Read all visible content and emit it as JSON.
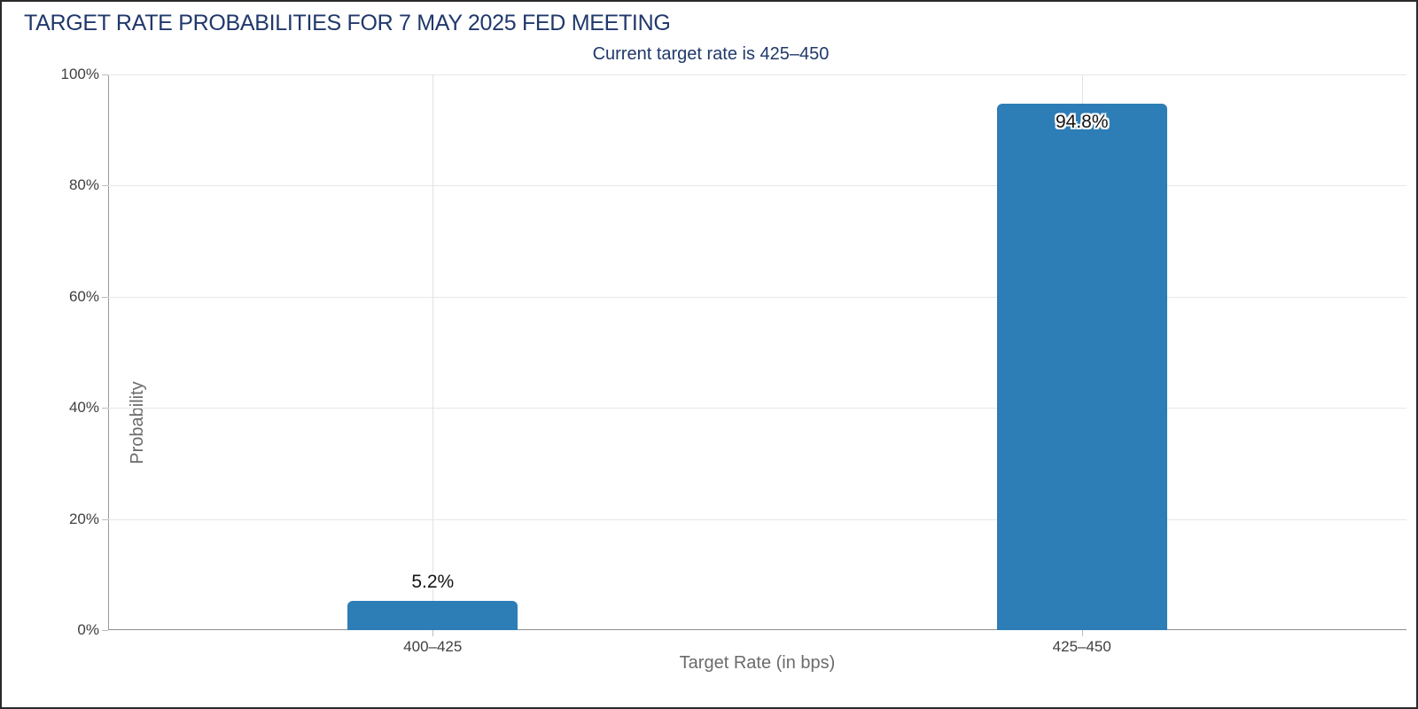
{
  "page": {
    "title": "TARGET RATE PROBABILITIES FOR 7 MAY 2025 FED MEETING",
    "subtitle": "Current target rate is 425–450"
  },
  "colors": {
    "title_text": "#20386b",
    "bar": "#2d7db7",
    "gridline": "#e7e7e7",
    "axis_line": "#9a9a9a",
    "tick_label": "#404040",
    "axis_title": "#6b6b6b",
    "value_label": "#151515"
  },
  "chart_data": {
    "type": "bar",
    "title": "TARGET RATE PROBABILITIES FOR 7 MAY 2025 FED MEETING",
    "subtitle": "Current target rate is 425–450",
    "categories": [
      "400–425",
      "425–450"
    ],
    "values": [
      5.2,
      94.8
    ],
    "value_labels": [
      "5.2%",
      "94.8%"
    ],
    "xlabel": "Target Rate (in bps)",
    "ylabel": "Probability",
    "ylim": [
      0,
      100
    ],
    "yticks": [
      0,
      20,
      40,
      60,
      80,
      100
    ],
    "ytick_labels": [
      "0%",
      "20%",
      "40%",
      "60%",
      "80%",
      "100%"
    ],
    "grid": true,
    "legend": "none",
    "bar_color": "#2d7db7"
  }
}
